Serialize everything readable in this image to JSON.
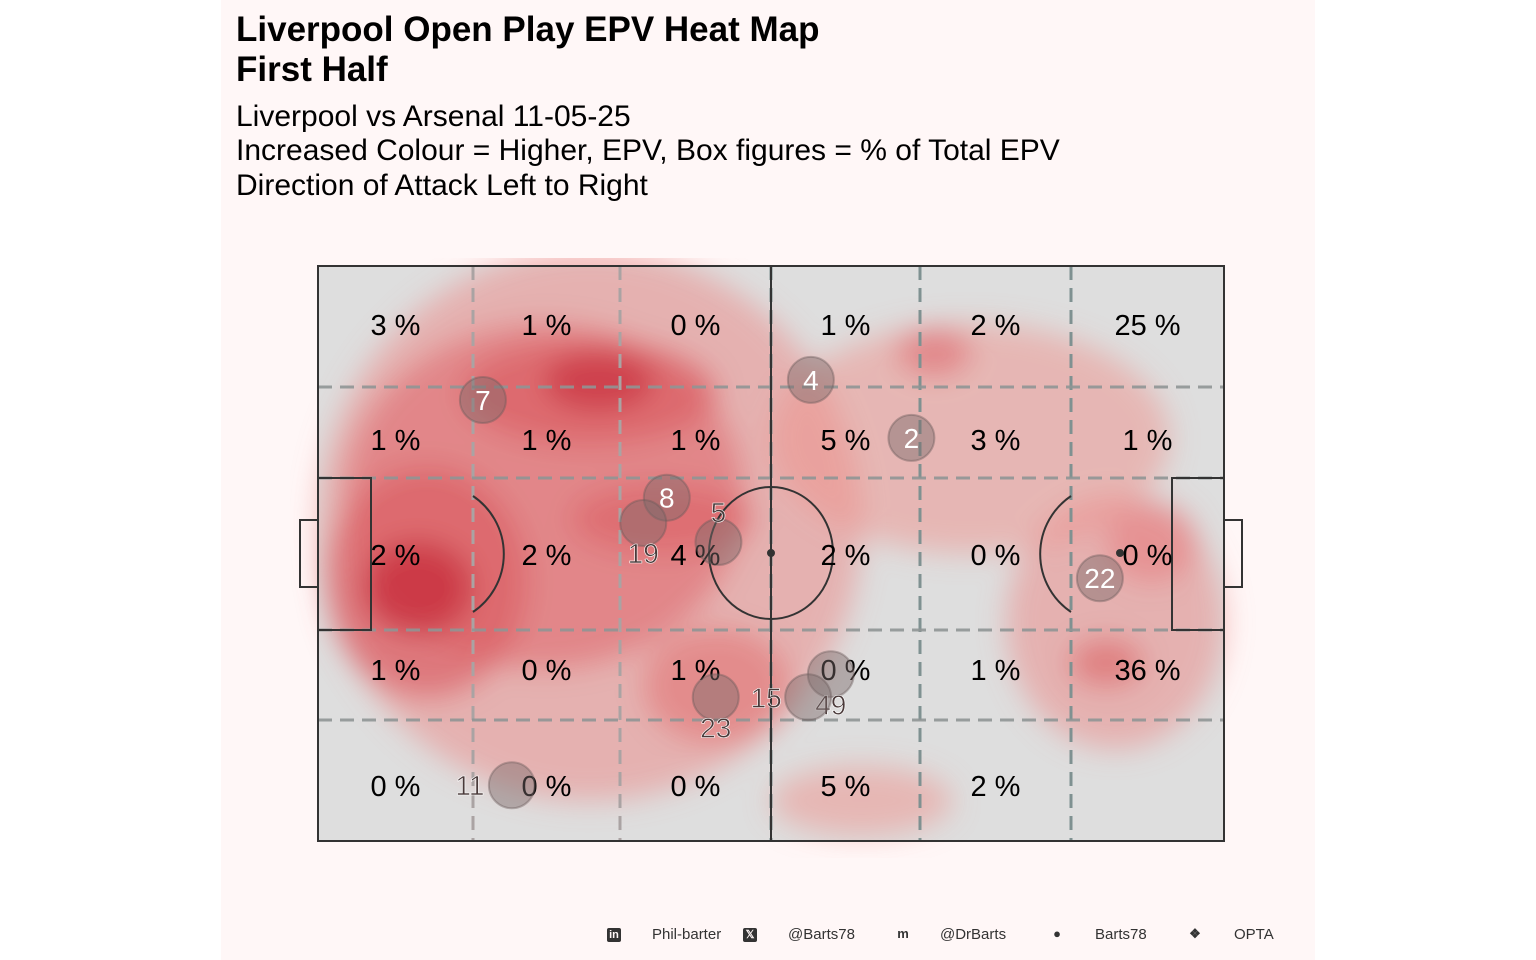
{
  "title": {
    "line1": "Liverpool Open Play EPV Heat Map",
    "line2": "First Half"
  },
  "subtitle": {
    "line1": "Liverpool vs Arsenal 11-05-25",
    "line2": "Increased Colour = Higher, EPV, Box figures = % of Total EPV",
    "line3": "Direction of Attack Left to Right"
  },
  "footer": [
    {
      "icon": "linkedin-icon",
      "label": "Phil-barter"
    },
    {
      "icon": "x-twitter-icon",
      "label": "@Barts78"
    },
    {
      "icon": "mastodon-icon",
      "label": "@DrBarts"
    },
    {
      "icon": "github-icon",
      "label": "Barts78"
    },
    {
      "icon": "dropbox-icon",
      "label": "OPTA"
    }
  ],
  "colors": {
    "pitch": "#dedede",
    "heat": "#e8313d",
    "player": "#7a6a6a",
    "background": "#fff7f7"
  },
  "chart_data": {
    "type": "heatmap",
    "x_range": [
      0,
      100
    ],
    "y_range": [
      0,
      100
    ],
    "zones": {
      "columns": 6,
      "rows": 5,
      "labels": [
        [
          "3 %",
          "1 %",
          "0 %",
          "1 %",
          "2 %",
          "25 %"
        ],
        [
          "1 %",
          "1 %",
          "1 %",
          "5 %",
          "3 %",
          "1 %"
        ],
        [
          "2 %",
          "2 %",
          "4 %",
          "2 %",
          "0 %",
          "0 %"
        ],
        [
          "1 %",
          "0 %",
          "1 %",
          "0 %",
          "1 %",
          "36 %"
        ],
        [
          "0 %",
          "0 %",
          "0 %",
          "5 %",
          "2 %",
          ""
        ]
      ]
    },
    "density_hotspots": [
      {
        "x": 30,
        "y": 45,
        "rx": 30,
        "ry": 48,
        "level": 0.25
      },
      {
        "x": 72,
        "y": 30,
        "rx": 22,
        "ry": 20,
        "level": 0.2
      },
      {
        "x": 88,
        "y": 62,
        "rx": 12,
        "ry": 22,
        "level": 0.25
      },
      {
        "x": 60,
        "y": 93,
        "rx": 10,
        "ry": 6,
        "level": 0.2
      },
      {
        "x": 25,
        "y": 40,
        "rx": 22,
        "ry": 30,
        "level": 0.45
      },
      {
        "x": 44,
        "y": 73,
        "rx": 8,
        "ry": 10,
        "level": 0.4
      },
      {
        "x": 12,
        "y": 55,
        "rx": 11,
        "ry": 20,
        "level": 0.55
      },
      {
        "x": 30,
        "y": 22,
        "rx": 14,
        "ry": 9,
        "level": 0.55
      },
      {
        "x": 31,
        "y": 20,
        "rx": 6,
        "ry": 5,
        "level": 0.8
      },
      {
        "x": 11,
        "y": 56,
        "rx": 6,
        "ry": 8,
        "level": 0.85
      },
      {
        "x": 68,
        "y": 15,
        "rx": 4,
        "ry": 4,
        "level": 0.45
      },
      {
        "x": 87,
        "y": 69,
        "rx": 4,
        "ry": 4,
        "level": 0.5
      },
      {
        "x": 38,
        "y": 44,
        "rx": 10,
        "ry": 6,
        "level": 0.5
      },
      {
        "x": 92,
        "y": 48,
        "rx": 5,
        "ry": 7,
        "level": 0.35
      }
    ],
    "players": [
      {
        "number": "7",
        "x": 18.2,
        "y": 23.3
      },
      {
        "number": "4",
        "x": 54.4,
        "y": 19.8
      },
      {
        "number": "2",
        "x": 65.5,
        "y": 29.9
      },
      {
        "number": "8",
        "x": 38.5,
        "y": 40.3
      },
      {
        "number": "19",
        "x": 35.9,
        "y": 44.7
      },
      {
        "number": "5",
        "x": 44.2,
        "y": 48.0
      },
      {
        "number": "22",
        "x": 86.3,
        "y": 54.3
      },
      {
        "number": "49",
        "x": 56.6,
        "y": 71.0
      },
      {
        "number": "15",
        "x": 54.1,
        "y": 75.0
      },
      {
        "number": "23",
        "x": 43.9,
        "y": 75.0
      },
      {
        "number": "11",
        "x": 21.4,
        "y": 90.3
      }
    ]
  }
}
